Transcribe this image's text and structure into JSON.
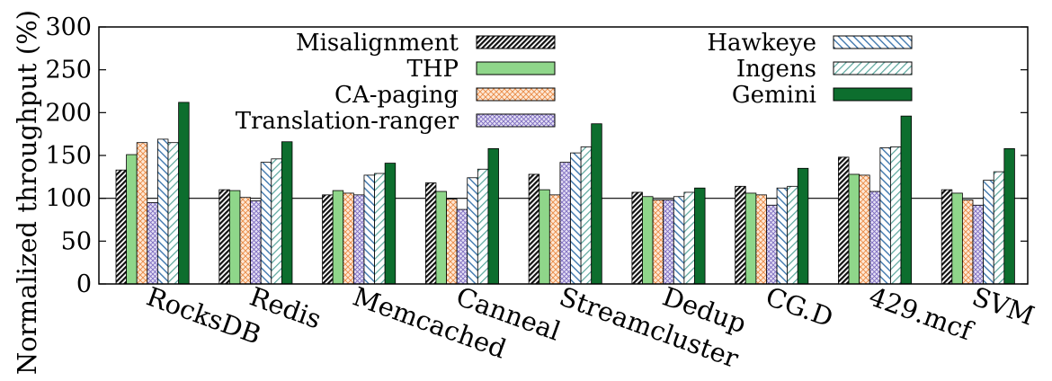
{
  "chart_data": {
    "type": "bar",
    "ylabel": "Normalized throughput (%)",
    "xlabel": "",
    "ylim": [
      0,
      300
    ],
    "yticks": [
      0,
      50,
      100,
      150,
      200,
      250,
      300
    ],
    "reference_line": 100,
    "legend_position": "top",
    "categories": [
      "RocksDB",
      "Redis",
      "Memcached",
      "Canneal",
      "Streamcluster",
      "Dedup",
      "CG.D",
      "429.mcf",
      "SVM"
    ],
    "series": [
      {
        "name": "Misalignment",
        "color": "#222222",
        "pattern": "diag-dark",
        "values": [
          133,
          110,
          104,
          118,
          128,
          107,
          114,
          148,
          110
        ]
      },
      {
        "name": "THP",
        "color": "#8fd68a",
        "pattern": "solid-green",
        "values": [
          151,
          109,
          109,
          108,
          110,
          102,
          106,
          128,
          106
        ]
      },
      {
        "name": "CA-paging",
        "color": "#f0a060",
        "pattern": "cross-orange",
        "values": [
          165,
          101,
          106,
          99,
          104,
          98,
          104,
          127,
          98
        ]
      },
      {
        "name": "Translation-ranger",
        "color": "#9a8ad0",
        "pattern": "cross-purple",
        "values": [
          95,
          97,
          104,
          87,
          142,
          98,
          92,
          108,
          92
        ]
      },
      {
        "name": "Hawkeye",
        "color": "#4a7fb0",
        "pattern": "diag-blue",
        "values": [
          169,
          142,
          127,
          124,
          153,
          102,
          112,
          159,
          121
        ]
      },
      {
        "name": "Ingens",
        "color": "#66b2a8",
        "pattern": "diag-teal",
        "values": [
          165,
          146,
          129,
          134,
          160,
          107,
          114,
          160,
          131
        ]
      },
      {
        "name": "Gemini",
        "color": "#0d6e2e",
        "pattern": "solid-darkgreen",
        "values": [
          212,
          166,
          141,
          158,
          187,
          112,
          135,
          196,
          158
        ]
      }
    ]
  }
}
